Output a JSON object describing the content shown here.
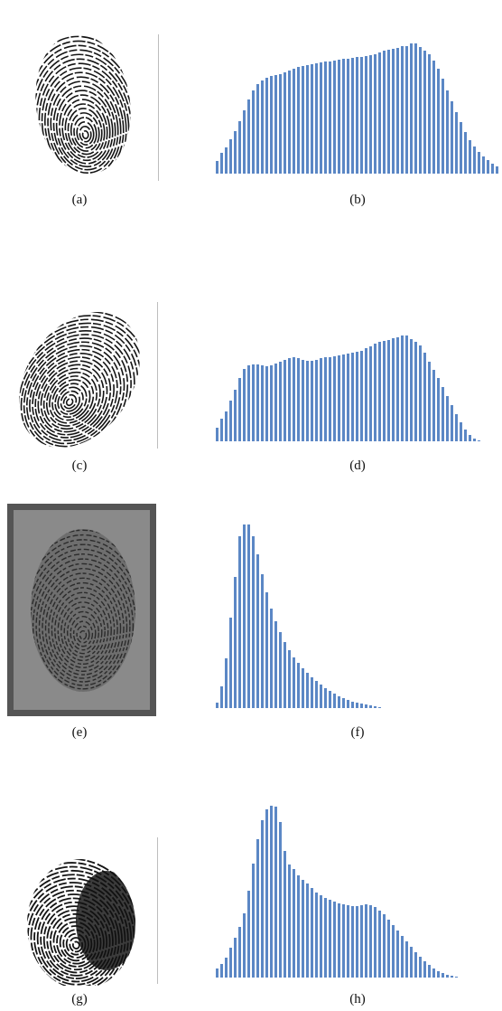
{
  "figure": {
    "captions": [
      "(a)",
      "(b)",
      "(c)",
      "(d)",
      "(e)",
      "(f)",
      "(g)",
      "(h)"
    ]
  },
  "colors": {
    "bar": "#5b87c5",
    "ridge": "#141414",
    "sensor_bg": "#8a8a8a"
  },
  "chart_data": [
    {
      "type": "bar",
      "title": "",
      "xlabel": "",
      "ylabel": "",
      "values": [
        14,
        23,
        29,
        38,
        47,
        58,
        70,
        82,
        92,
        99,
        103,
        106,
        108,
        109,
        110,
        112,
        114,
        116,
        118,
        119,
        120,
        121,
        122,
        123,
        124,
        124,
        125,
        126,
        127,
        127,
        128,
        129,
        129,
        130,
        131,
        132,
        134,
        136,
        137,
        138,
        139,
        141,
        141,
        144,
        144,
        140,
        136,
        132,
        125,
        116,
        105,
        92,
        80,
        68,
        57,
        46,
        37,
        30,
        24,
        19,
        15,
        11,
        8,
        5
      ]
    },
    {
      "type": "bar",
      "title": "",
      "xlabel": "",
      "ylabel": "",
      "values": [
        15,
        25,
        33,
        45,
        57,
        70,
        80,
        84,
        85,
        85,
        84,
        83,
        84,
        86,
        88,
        90,
        92,
        93,
        92,
        90,
        89,
        89,
        90,
        92,
        93,
        93,
        94,
        95,
        96,
        97,
        98,
        99,
        100,
        103,
        105,
        108,
        110,
        111,
        112,
        114,
        115,
        117,
        117,
        113,
        110,
        106,
        98,
        88,
        79,
        70,
        60,
        50,
        40,
        30,
        21,
        13,
        7,
        3,
        1
      ]
    },
    {
      "type": "bar",
      "title": "",
      "xlabel": "",
      "ylabel": "",
      "values": [
        6,
        24,
        55,
        100,
        145,
        190,
        210,
        206,
        190,
        170,
        148,
        128,
        110,
        96,
        84,
        73,
        64,
        56,
        50,
        44,
        39,
        34,
        30,
        26,
        22,
        19,
        16,
        13,
        11,
        9,
        7,
        6,
        5,
        4,
        3,
        2,
        1
      ]
    },
    {
      "type": "bar",
      "title": "",
      "xlabel": "",
      "ylabel": "",
      "values": [
        10,
        15,
        22,
        33,
        44,
        56,
        71,
        96,
        126,
        153,
        174,
        186,
        190,
        189,
        172,
        140,
        125,
        120,
        113,
        108,
        104,
        99,
        94,
        91,
        88,
        86,
        84,
        82,
        81,
        80,
        79,
        79,
        80,
        81,
        80,
        78,
        74,
        70,
        64,
        58,
        52,
        46,
        40,
        34,
        28,
        23,
        18,
        14,
        10,
        7,
        5,
        3,
        2,
        1
      ]
    }
  ]
}
